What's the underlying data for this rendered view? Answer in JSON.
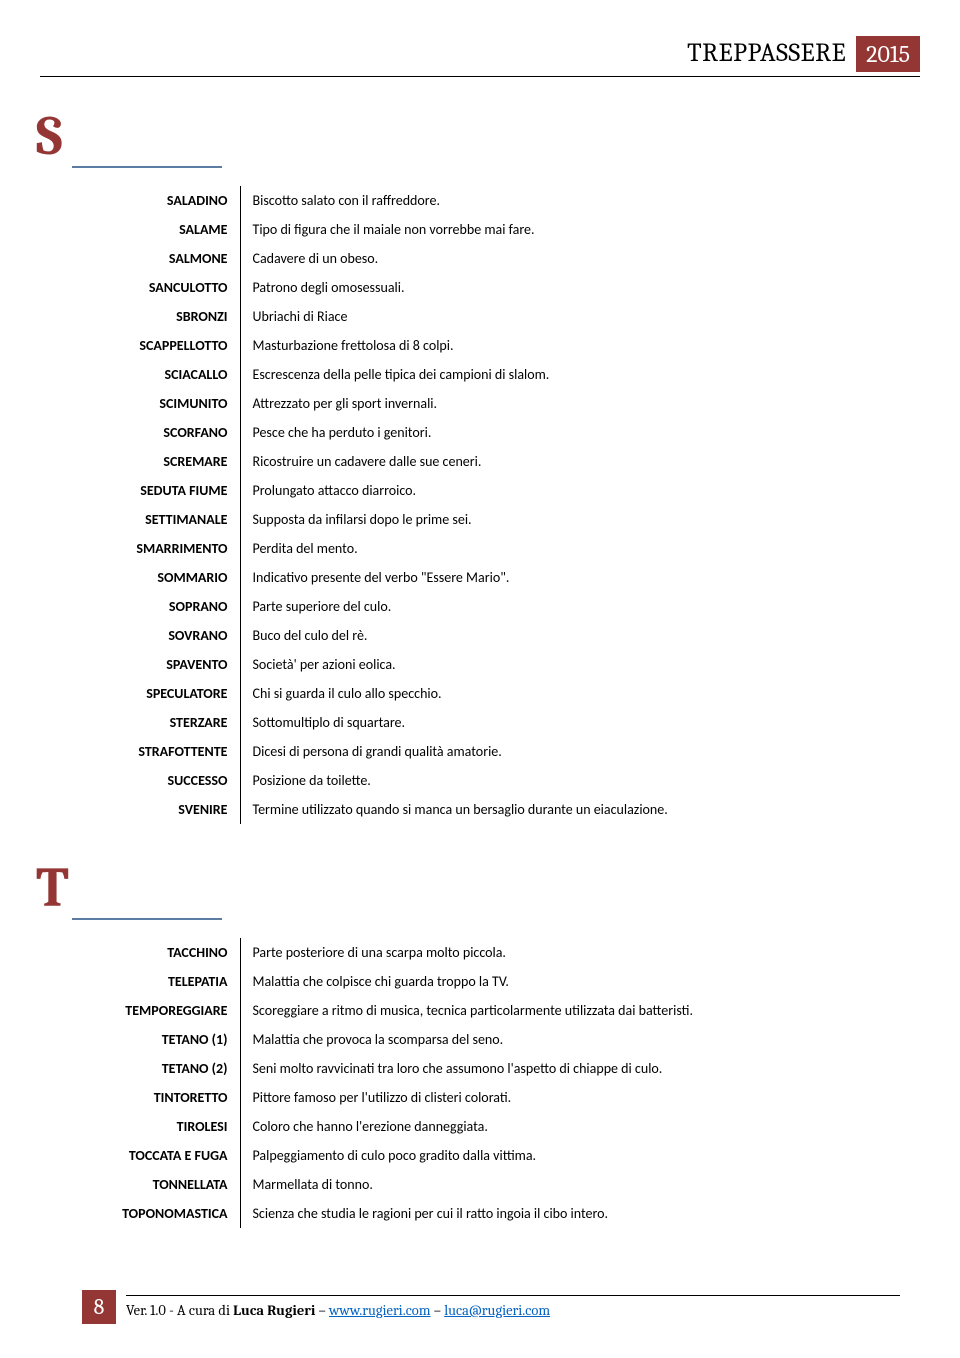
{
  "header": {
    "title": "TREPPASSERE",
    "year": "2015"
  },
  "sections": [
    {
      "letter": "S",
      "entries": [
        {
          "term": "SALADINO",
          "desc": "Biscotto salato con il raffreddore."
        },
        {
          "term": "SALAME",
          "desc": "Tipo di figura che il maiale non vorrebbe mai fare."
        },
        {
          "term": "SALMONE",
          "desc": "Cadavere di un obeso."
        },
        {
          "term": "SANCULOTTO",
          "desc": "Patrono degli omosessuali."
        },
        {
          "term": "SBRONZI",
          "desc": "Ubriachi di Riace"
        },
        {
          "term": "SCAPPELLOTTO",
          "desc": "Masturbazione frettolosa di 8 colpi."
        },
        {
          "term": "SCIACALLO",
          "desc": "Escrescenza della pelle tipica dei campioni di slalom."
        },
        {
          "term": "SCIMUNITO",
          "desc": "Attrezzato per gli sport invernali."
        },
        {
          "term": "SCORFANO",
          "desc": "Pesce che ha perduto i genitori."
        },
        {
          "term": "SCREMARE",
          "desc": "Ricostruire un cadavere dalle sue ceneri."
        },
        {
          "term": "SEDUTA FIUME",
          "desc": "Prolungato attacco diarroico."
        },
        {
          "term": "SETTIMANALE",
          "desc": "Supposta da infilarsi dopo le prime sei."
        },
        {
          "term": "SMARRIMENTO",
          "desc": "Perdita del mento."
        },
        {
          "term": "SOMMARIO",
          "desc": "Indicativo presente del verbo \"Essere Mario\"."
        },
        {
          "term": "SOPRANO",
          "desc": "Parte superiore del culo."
        },
        {
          "term": "SOVRANO",
          "desc": "Buco del culo del rè."
        },
        {
          "term": "SPAVENTO",
          "desc": "Società' per azioni eolica."
        },
        {
          "term": "SPECULATORE",
          "desc": "Chi si guarda il culo allo specchio."
        },
        {
          "term": "STERZARE",
          "desc": "Sottomultiplo di squartare."
        },
        {
          "term": "STRAFOTTENTE",
          "desc": "Dicesi di persona di grandi qualità amatorie."
        },
        {
          "term": "SUCCESSO",
          "desc": "Posizione da toilette."
        },
        {
          "term": "SVENIRE",
          "desc": "Termine utilizzato quando si manca un bersaglio durante un eiaculazione."
        }
      ]
    },
    {
      "letter": "T",
      "entries": [
        {
          "term": "TACCHINO",
          "desc": "Parte posteriore di una scarpa molto piccola."
        },
        {
          "term": "TELEPATIA",
          "desc": "Malattia che colpisce chi guarda troppo la TV."
        },
        {
          "term": "TEMPOREGGIARE",
          "desc": "Scoreggiare a ritmo di musica, tecnica particolarmente utilizzata dai batteristi."
        },
        {
          "term": "TETANO (1)",
          "desc": "Malattia che provoca la scomparsa del seno."
        },
        {
          "term": "TETANO (2)",
          "desc": "Seni molto ravvicinati tra loro che assumono l'aspetto di chiappe di culo."
        },
        {
          "term": "TINTORETTO",
          "desc": "Pittore famoso per l'utilizzo di clisteri colorati."
        },
        {
          "term": "TIROLESI",
          "desc": "Coloro che hanno l'erezione danneggiata."
        },
        {
          "term": "TOCCATA E FUGA",
          "desc": "Palpeggiamento di culo poco gradito dalla vittima."
        },
        {
          "term": "TONNELLATA",
          "desc": "Marmellata di tonno."
        },
        {
          "term": "TOPONOMASTICA",
          "desc": "Scienza che studia le ragioni per cui il ratto ingoia il cibo intero."
        }
      ]
    }
  ],
  "footer": {
    "page": "8",
    "version_prefix": "Ver. 1.0 - A cura di ",
    "author": "Luca Rugieri",
    "sep": " – ",
    "link1_text": "www.rugieri.com",
    "link2_text": "luca@rugieri.com"
  }
}
